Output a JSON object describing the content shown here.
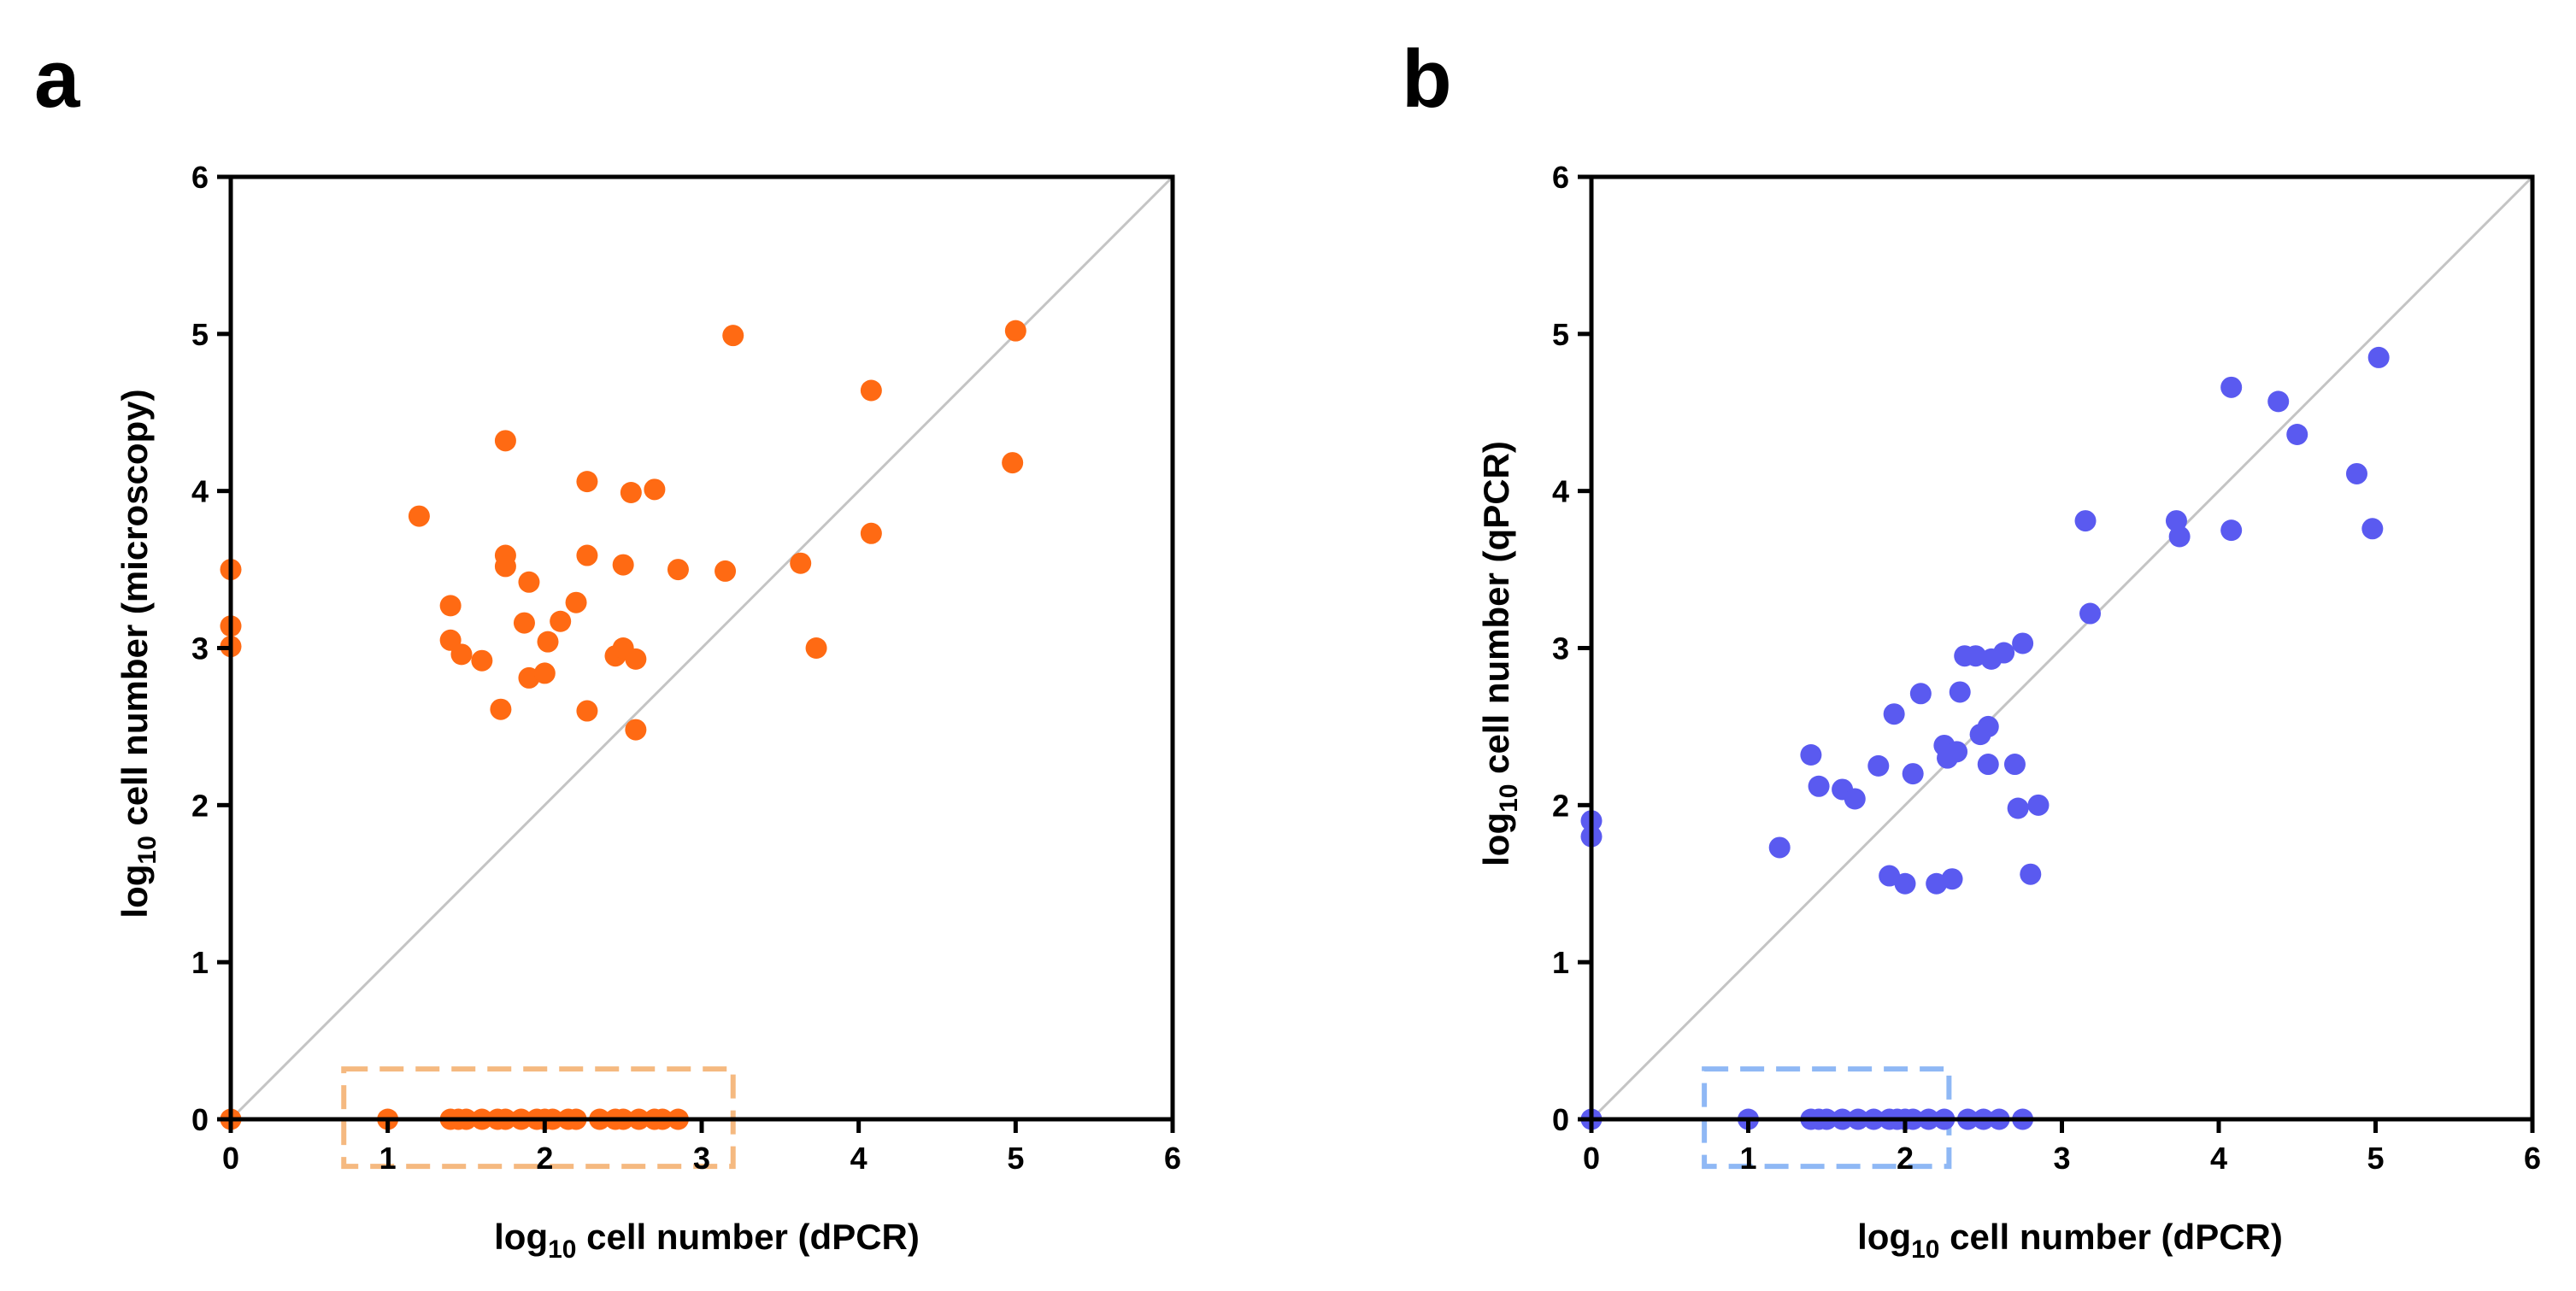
{
  "chart_data": [
    {
      "panel": "a",
      "type": "scatter",
      "x_label_main": "log",
      "x_label_sub": "10",
      "x_label_rest": " cell number (dPCR)",
      "y_label_main": "log",
      "y_label_sub": "10",
      "y_label_rest": " cell number (microscopy)",
      "xlim": [
        0,
        6
      ],
      "ylim": [
        0,
        6
      ],
      "x_ticks": [
        "0",
        "1",
        "2",
        "3",
        "4",
        "5",
        "6"
      ],
      "y_ticks": [
        "0",
        "1",
        "2",
        "3",
        "4",
        "5",
        "6"
      ],
      "identity_line": true,
      "grid": false,
      "marker_color": "#ff6a13",
      "highlight_box_color": "#f5b980",
      "highlight_box": {
        "x": [
          0.72,
          3.2
        ],
        "y": [
          -0.3,
          0.32
        ]
      },
      "points": [
        [
          0,
          3.5
        ],
        [
          0,
          3.14
        ],
        [
          0,
          3.01
        ],
        [
          0,
          0
        ],
        [
          1.2,
          3.84
        ],
        [
          1.4,
          3.27
        ],
        [
          1.4,
          3.05
        ],
        [
          1.47,
          2.96
        ],
        [
          1.6,
          2.92
        ],
        [
          1.72,
          2.61
        ],
        [
          1.75,
          4.32
        ],
        [
          1.75,
          3.59
        ],
        [
          1.75,
          3.52
        ],
        [
          1.87,
          3.16
        ],
        [
          1.9,
          3.42
        ],
        [
          1.9,
          2.81
        ],
        [
          2.0,
          2.84
        ],
        [
          2.02,
          3.04
        ],
        [
          2.1,
          3.17
        ],
        [
          2.2,
          3.29
        ],
        [
          2.27,
          4.06
        ],
        [
          2.27,
          3.59
        ],
        [
          2.27,
          2.6
        ],
        [
          2.45,
          2.95
        ],
        [
          2.5,
          3.53
        ],
        [
          2.5,
          3.0
        ],
        [
          2.55,
          3.99
        ],
        [
          2.58,
          2.93
        ],
        [
          2.58,
          2.48
        ],
        [
          2.7,
          4.01
        ],
        [
          2.85,
          3.5
        ],
        [
          3.15,
          3.49
        ],
        [
          3.2,
          4.99
        ],
        [
          3.63,
          3.54
        ],
        [
          3.73,
          3.0
        ],
        [
          4.08,
          4.64
        ],
        [
          4.08,
          3.73
        ],
        [
          4.98,
          4.18
        ],
        [
          5.0,
          5.02
        ],
        [
          1.0,
          0
        ],
        [
          1.4,
          0
        ],
        [
          1.45,
          0
        ],
        [
          1.5,
          0
        ],
        [
          1.6,
          0
        ],
        [
          1.7,
          0
        ],
        [
          1.75,
          0
        ],
        [
          1.85,
          0
        ],
        [
          1.95,
          0
        ],
        [
          2.0,
          0
        ],
        [
          2.05,
          0
        ],
        [
          2.15,
          0
        ],
        [
          2.2,
          0
        ],
        [
          2.35,
          0
        ],
        [
          2.45,
          0
        ],
        [
          2.5,
          0
        ],
        [
          2.6,
          0
        ],
        [
          2.7,
          0
        ],
        [
          2.75,
          0
        ],
        [
          2.85,
          0
        ]
      ]
    },
    {
      "panel": "b",
      "type": "scatter",
      "x_label_main": "log",
      "x_label_sub": "10",
      "x_label_rest": " cell number (dPCR)",
      "y_label_main": "log",
      "y_label_sub": "10",
      "y_label_rest": " cell number (qPCR)",
      "xlim": [
        0,
        6
      ],
      "ylim": [
        0,
        6
      ],
      "x_ticks": [
        "0",
        "1",
        "2",
        "3",
        "4",
        "5",
        "6"
      ],
      "y_ticks": [
        "0",
        "1",
        "2",
        "3",
        "4",
        "5",
        "6"
      ],
      "identity_line": true,
      "grid": false,
      "marker_color": "#5a5af0",
      "highlight_box_color": "#8fb8f5",
      "highlight_box": {
        "x": [
          0.72,
          2.28
        ],
        "y": [
          -0.3,
          0.32
        ]
      },
      "points": [
        [
          0,
          1.9
        ],
        [
          0,
          1.8
        ],
        [
          0,
          0
        ],
        [
          1.2,
          1.73
        ],
        [
          1.4,
          2.32
        ],
        [
          1.45,
          2.12
        ],
        [
          1.6,
          2.1
        ],
        [
          1.68,
          2.04
        ],
        [
          1.83,
          2.25
        ],
        [
          1.9,
          1.55
        ],
        [
          1.93,
          2.58
        ],
        [
          2.0,
          1.5
        ],
        [
          2.05,
          2.2
        ],
        [
          2.1,
          2.71
        ],
        [
          2.2,
          1.5
        ],
        [
          2.25,
          2.38
        ],
        [
          2.27,
          2.3
        ],
        [
          2.3,
          1.53
        ],
        [
          2.33,
          2.34
        ],
        [
          2.35,
          2.72
        ],
        [
          2.38,
          2.95
        ],
        [
          2.45,
          2.95
        ],
        [
          2.48,
          2.45
        ],
        [
          2.53,
          2.5
        ],
        [
          2.53,
          2.26
        ],
        [
          2.55,
          2.93
        ],
        [
          2.63,
          2.97
        ],
        [
          2.7,
          2.26
        ],
        [
          2.72,
          1.98
        ],
        [
          2.75,
          3.03
        ],
        [
          2.8,
          1.56
        ],
        [
          2.85,
          2.0
        ],
        [
          3.15,
          3.81
        ],
        [
          3.18,
          3.22
        ],
        [
          3.73,
          3.81
        ],
        [
          3.75,
          3.71
        ],
        [
          4.08,
          4.66
        ],
        [
          4.08,
          3.75
        ],
        [
          4.38,
          4.57
        ],
        [
          4.5,
          4.36
        ],
        [
          4.88,
          4.11
        ],
        [
          4.98,
          3.76
        ],
        [
          5.02,
          4.85
        ],
        [
          1.0,
          0
        ],
        [
          1.4,
          0
        ],
        [
          1.45,
          0
        ],
        [
          1.5,
          0
        ],
        [
          1.6,
          0
        ],
        [
          1.7,
          0
        ],
        [
          1.8,
          0
        ],
        [
          1.9,
          0
        ],
        [
          1.95,
          0
        ],
        [
          2.0,
          0
        ],
        [
          2.05,
          0
        ],
        [
          2.15,
          0
        ],
        [
          2.25,
          0
        ],
        [
          2.4,
          0
        ],
        [
          2.5,
          0
        ],
        [
          2.6,
          0
        ],
        [
          2.75,
          0
        ]
      ]
    }
  ]
}
